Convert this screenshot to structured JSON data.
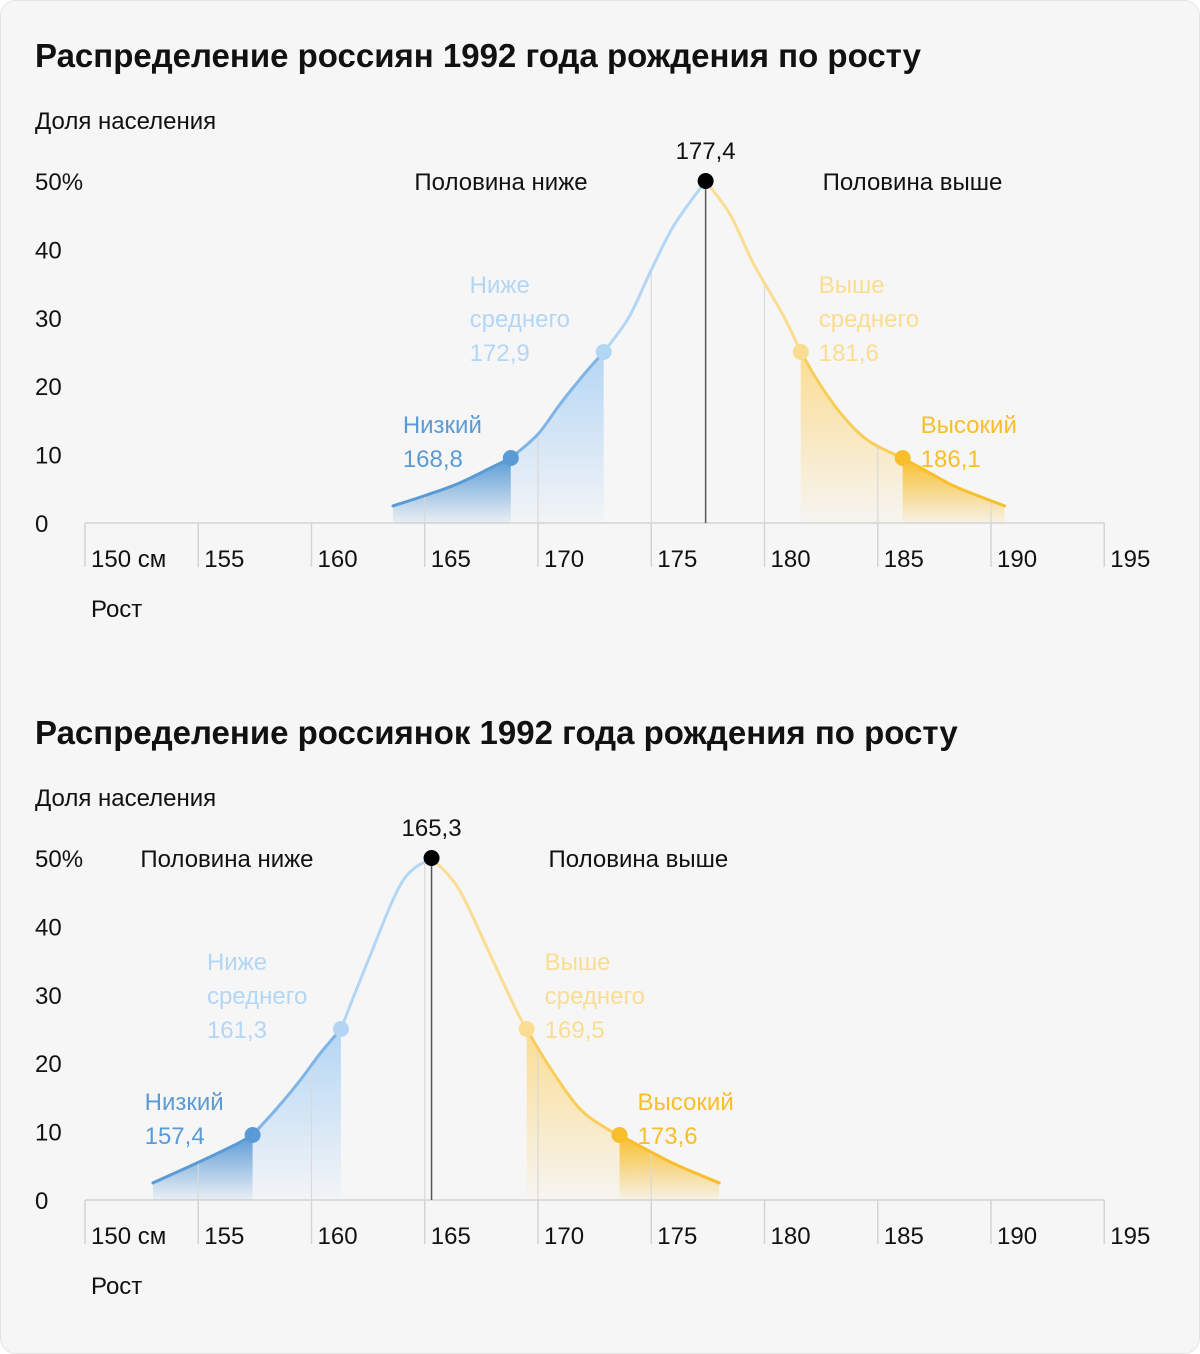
{
  "colors": {
    "blue_dark": "#5b9bd5",
    "blue_light": "#b4d6f5",
    "yellow_dark": "#f8be2c",
    "yellow_light": "#fbdd92",
    "grid": "#d4d4d4",
    "text": "#111111",
    "marker": "#000000"
  },
  "chart_data": [
    {
      "type": "area",
      "title": "Распределение россиян 1992 года рождения по росту",
      "ylabel": "Доля населения",
      "xlabel": "Рост",
      "x_tick_labels": [
        "150 см",
        "155",
        "160",
        "165",
        "170",
        "175",
        "180",
        "185",
        "190",
        "195"
      ],
      "x_ticks": [
        150,
        155,
        160,
        165,
        170,
        175,
        180,
        185,
        190,
        195
      ],
      "y_tick_labels": [
        "0",
        "10",
        "20",
        "30",
        "40",
        "50%"
      ],
      "y_ticks": [
        0,
        10,
        20,
        30,
        40,
        50
      ],
      "xlim": [
        150,
        195
      ],
      "ylim": [
        0,
        50
      ],
      "curve": {
        "x": [
          163.6,
          165,
          166.5,
          168.0,
          168.8,
          170,
          171,
          172.1,
          172.9,
          174,
          175,
          176,
          177.4,
          178.5,
          179.5,
          180.8,
          181.6,
          182.5,
          183.5,
          184.6,
          186.1,
          187.2,
          188.5,
          190.6
        ],
        "y": [
          2.5,
          4.0,
          5.8,
          8.2,
          9.5,
          13.0,
          17.5,
          22.0,
          25.0,
          30.0,
          37.0,
          43.5,
          50.0,
          45.0,
          38.0,
          30.5,
          25.0,
          20.0,
          15.5,
          12.0,
          9.5,
          7.5,
          5.2,
          2.5
        ]
      },
      "median": {
        "x": 177.4,
        "label": "177,4"
      },
      "half_below_label": "Половина ниже",
      "half_above_label": "Половина выше",
      "markers": [
        {
          "x": 168.8,
          "y": 9.5,
          "label": "Низкий",
          "value": "168,8",
          "color": "#5b9bd5"
        },
        {
          "x": 172.9,
          "y": 25.0,
          "label": "Ниже\nсреднего",
          "value": "172,9",
          "color": "#b4d6f5"
        },
        {
          "x": 181.6,
          "y": 25.0,
          "label": "Выше\nсреднего",
          "value": "181,6",
          "color": "#fbdd92"
        },
        {
          "x": 186.1,
          "y": 9.5,
          "label": "Высокий",
          "value": "186,1",
          "color": "#f8be2c"
        }
      ]
    },
    {
      "type": "area",
      "title": "Распределение россиянок 1992 года рождения по росту",
      "ylabel": "Доля населения",
      "xlabel": "Рост",
      "x_tick_labels": [
        "150 см",
        "155",
        "160",
        "165",
        "170",
        "175",
        "180",
        "185",
        "190",
        "195"
      ],
      "x_ticks": [
        150,
        155,
        160,
        165,
        170,
        175,
        180,
        185,
        190,
        195
      ],
      "y_tick_labels": [
        "0",
        "10",
        "20",
        "30",
        "40",
        "50%"
      ],
      "y_ticks": [
        0,
        10,
        20,
        30,
        40,
        50
      ],
      "xlim": [
        150,
        195
      ],
      "ylim": [
        0,
        50
      ],
      "curve": {
        "x": [
          153.0,
          155,
          156.7,
          157.4,
          158.5,
          159.5,
          160.4,
          161.3,
          162.5,
          164.0,
          165.3,
          166.5,
          167.8,
          169.0,
          169.5,
          170.5,
          171.8,
          173.0,
          173.6,
          175.0,
          176.2,
          178.0
        ],
        "y": [
          2.5,
          5.5,
          8.2,
          9.5,
          13.5,
          17.5,
          21.5,
          25.0,
          35.0,
          46.5,
          50.0,
          45.5,
          36.5,
          28.0,
          25.0,
          19.5,
          13.5,
          10.5,
          9.5,
          7.0,
          5.0,
          2.5
        ]
      },
      "median": {
        "x": 165.3,
        "label": "165,3"
      },
      "half_below_label": "Половина ниже",
      "half_above_label": "Половина выше",
      "markers": [
        {
          "x": 157.4,
          "y": 9.5,
          "label": "Низкий",
          "value": "157,4",
          "color": "#5b9bd5"
        },
        {
          "x": 161.3,
          "y": 25.0,
          "label": "Ниже\nсреднего",
          "value": "161,3",
          "color": "#b4d6f5"
        },
        {
          "x": 169.5,
          "y": 25.0,
          "label": "Выше\nсреднего",
          "value": "169,5",
          "color": "#fbdd92"
        },
        {
          "x": 173.6,
          "y": 9.5,
          "label": "Высокий",
          "value": "173,6",
          "color": "#f8be2c"
        }
      ]
    }
  ]
}
